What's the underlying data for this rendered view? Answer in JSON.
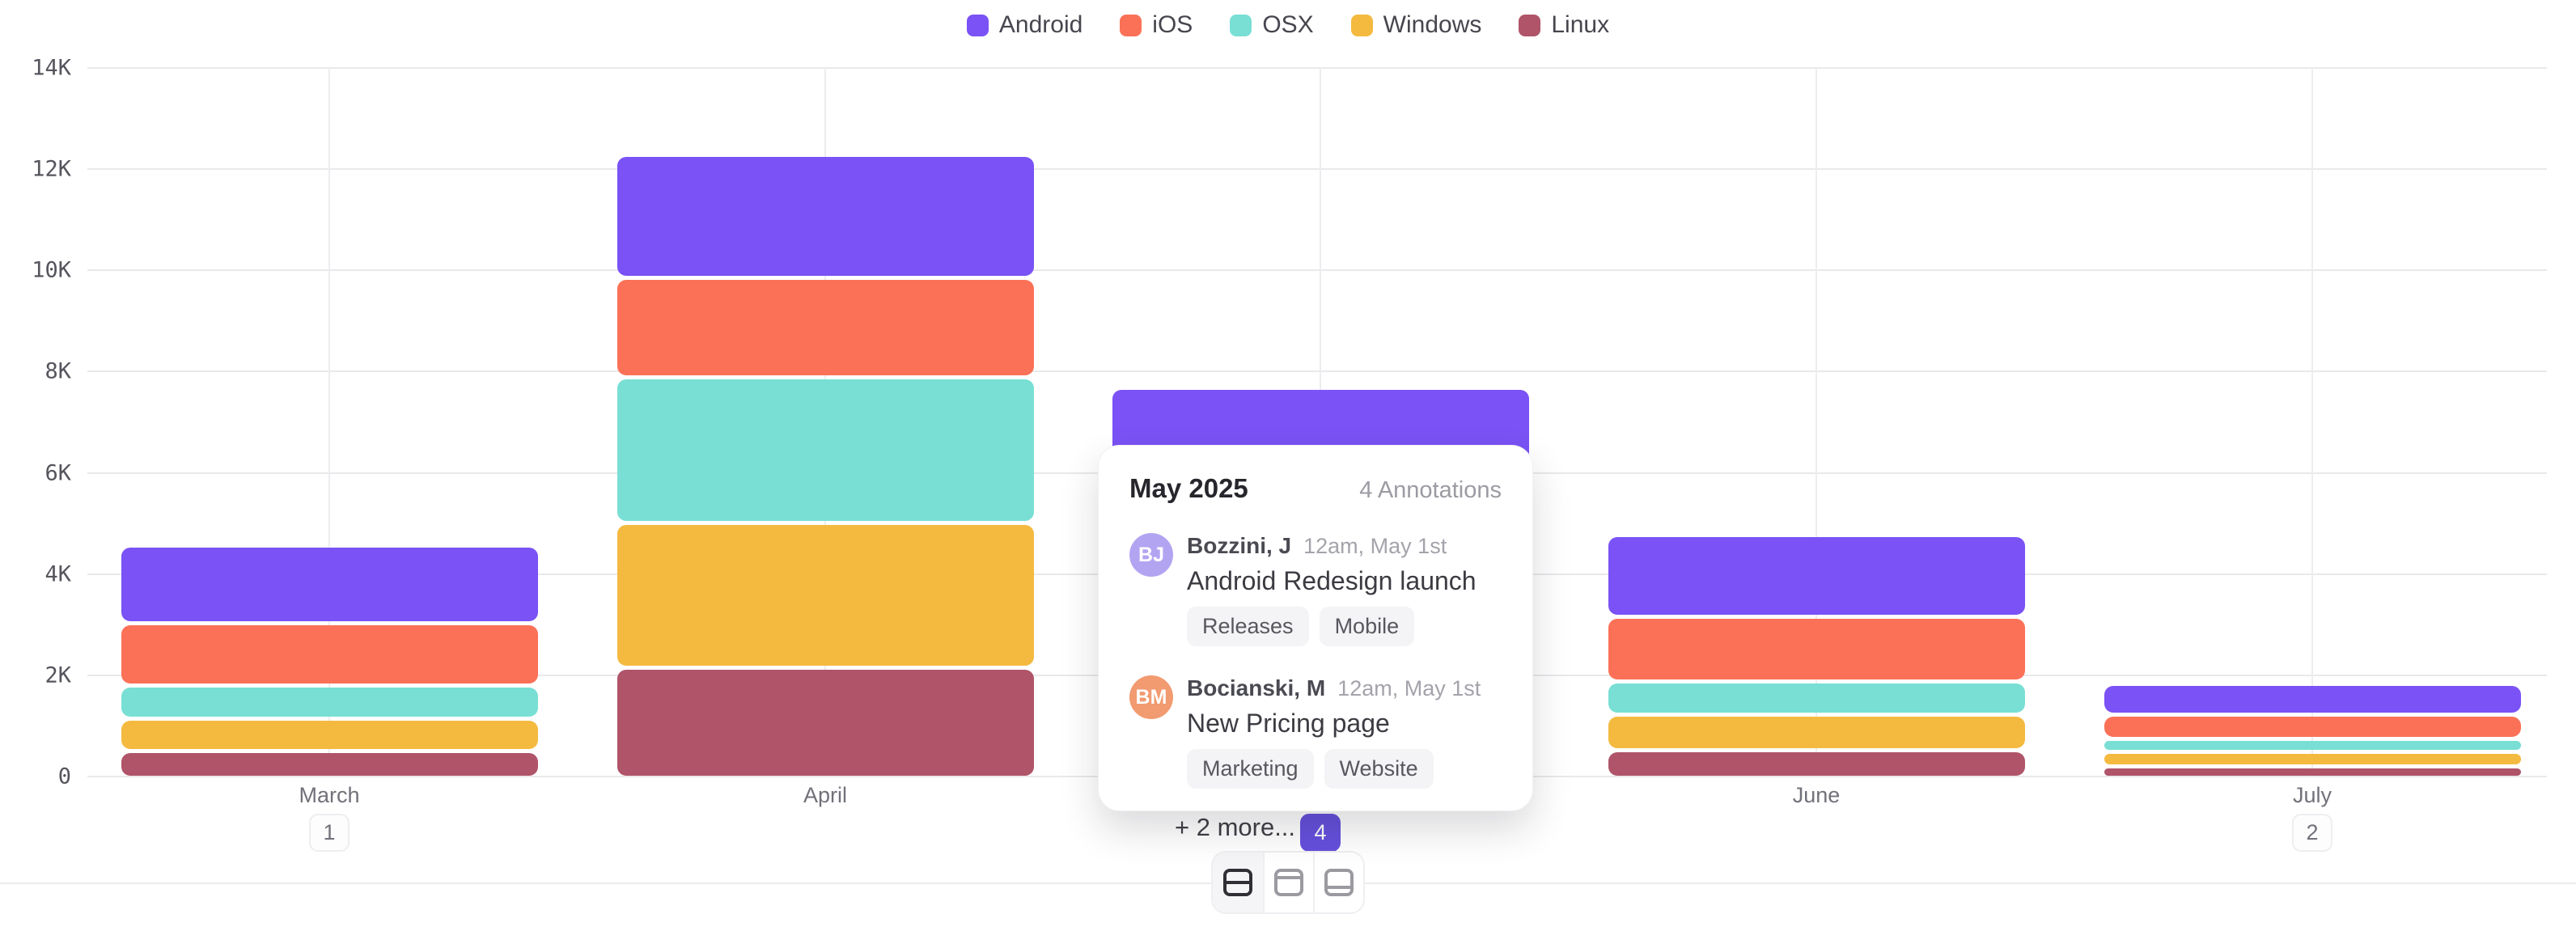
{
  "chart_data": {
    "type": "bar",
    "stacked": true,
    "title": "",
    "xlabel": "",
    "ylabel": "",
    "categories": [
      "March",
      "April",
      "May",
      "June",
      "July"
    ],
    "series": [
      {
        "name": "Android",
        "color": "#7A52F5",
        "values": [
          1450,
          2350,
          2000,
          1530,
          520
        ]
      },
      {
        "name": "iOS",
        "color": "#FB7157",
        "values": [
          1150,
          1890,
          1600,
          1200,
          400
        ]
      },
      {
        "name": "OSX",
        "color": "#79DFD4",
        "values": [
          570,
          2800,
          1400,
          580,
          180
        ]
      },
      {
        "name": "Windows",
        "color": "#F4BA40",
        "values": [
          570,
          2780,
          1300,
          620,
          200
        ]
      },
      {
        "name": "Linux",
        "color": "#AF5469",
        "values": [
          440,
          2090,
          1000,
          460,
          150
        ]
      }
    ],
    "stack_order_bottom_to_top": [
      "Linux",
      "Windows",
      "OSX",
      "iOS",
      "Android"
    ],
    "ylim": [
      0,
      14000
    ],
    "yticks": [
      "14K",
      "12K",
      "10K",
      "8K",
      "6K",
      "4K",
      "2K",
      "0"
    ],
    "legend_position": "top-center",
    "grid": "on",
    "annotation_badges": [
      {
        "category": "March",
        "count": "1",
        "active": false
      },
      {
        "category": "May",
        "count": "4",
        "active": true
      },
      {
        "category": "July",
        "count": "2",
        "active": false
      }
    ]
  },
  "popup": {
    "title": "May 2025",
    "count_label": "4 Annotations",
    "annotations": [
      {
        "initials": "BJ",
        "avatar_color": "#B3A4F2",
        "author": "Bozzini, J",
        "time": "12am, May 1st",
        "title": "Android Redesign launch",
        "tags": [
          "Releases",
          "Mobile"
        ]
      },
      {
        "initials": "BM",
        "avatar_color": "#F29A70",
        "author": "Bocianski, M",
        "time": "12am, May 1st",
        "title": "New Pricing page",
        "tags": [
          "Marketing",
          "Website"
        ]
      }
    ],
    "more_label": "+ 2 more..."
  },
  "toolbar": {
    "buttons": [
      {
        "icon": "layout-split-rows-icon",
        "active": true
      },
      {
        "icon": "layout-header-row-icon",
        "active": false
      },
      {
        "icon": "layout-footer-row-icon",
        "active": false
      }
    ]
  }
}
